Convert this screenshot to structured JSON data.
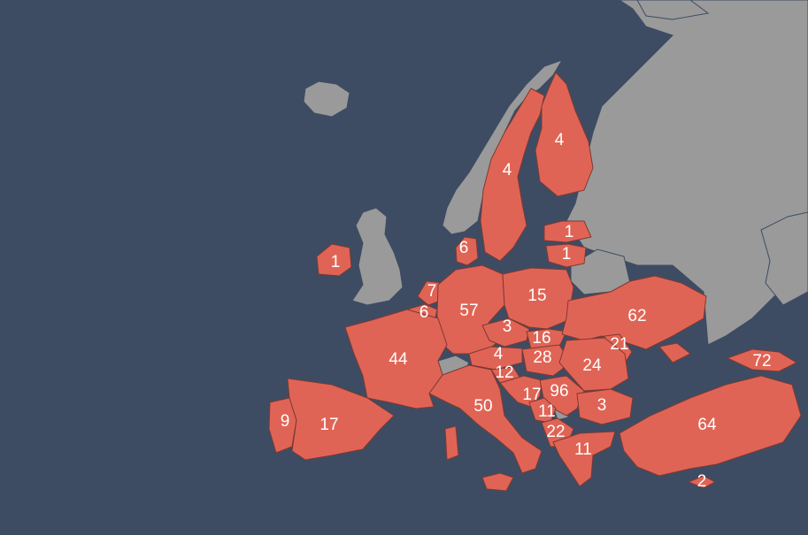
{
  "colors": {
    "sea": "#3d4c63",
    "highlight": "#e06455",
    "other_land": "#9a9a9a",
    "border": "#7d3a33",
    "label": "#ffffff"
  },
  "labels": {
    "ireland": "1",
    "denmark": "6",
    "sweden": "4",
    "finland": "4",
    "latvia": "1",
    "lithuania": "1",
    "netherlands": "7",
    "belgium": "6",
    "germany": "57",
    "poland": "15",
    "czechia": "3",
    "slovakia": "16",
    "ukraine": "62",
    "moldova": "21",
    "france": "44",
    "austria": "4",
    "hungary": "28",
    "romania": "24",
    "slovenia": "12",
    "croatia": "17",
    "serbia": "96",
    "bulgaria": "3",
    "bosnia": "11",
    "italy": "50",
    "albania_montenegro": "22",
    "greece": "11",
    "portugal": "9",
    "spain": "17",
    "georgia": "72",
    "turkey": "64",
    "cyprus": "2"
  }
}
